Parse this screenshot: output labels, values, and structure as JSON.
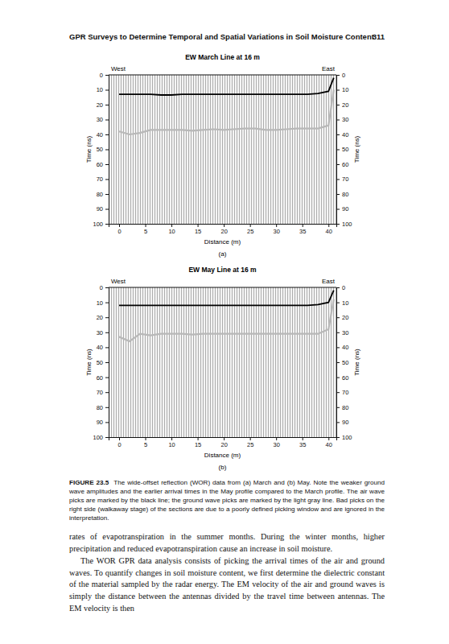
{
  "header": {
    "title": "GPR Surveys to Determine Temporal and Spatial Variations in Soil Moisture Content",
    "page": "311"
  },
  "chart_data": [
    {
      "type": "line",
      "title": "EW March Line at 16 m",
      "annotations": [
        "West",
        "East"
      ],
      "panel_label": "(a)",
      "xlabel": "Distance (m)",
      "ylabel": "Time (ns)",
      "x": [
        0,
        2,
        4,
        6,
        8,
        10,
        12,
        14,
        16,
        18,
        20,
        22,
        24,
        26,
        28,
        30,
        32,
        34,
        36,
        38,
        40,
        41
      ],
      "series": [
        {
          "color": "#000000",
          "line_style": "solid",
          "values": [
            13,
            13,
            13,
            13,
            13.5,
            13.5,
            13,
            13,
            13,
            13,
            13,
            13,
            13,
            13,
            13,
            13,
            13,
            13,
            13,
            12.5,
            11,
            2
          ]
        },
        {
          "color": "#b8b8b8",
          "line_style": "solid",
          "values": [
            38,
            40,
            39,
            37,
            37,
            37,
            37,
            37.5,
            37,
            36.5,
            37,
            36.5,
            36,
            36,
            37,
            37,
            36.5,
            36,
            36,
            36,
            34,
            10
          ]
        }
      ],
      "xlim": [
        -2,
        41.5
      ],
      "ylim": [
        0,
        100
      ],
      "xticks": [
        0,
        5,
        10,
        15,
        20,
        25,
        30,
        35,
        40
      ],
      "yticks": [
        0,
        10,
        20,
        30,
        40,
        50,
        60,
        70,
        80,
        90,
        100
      ],
      "grid": false
    },
    {
      "type": "line",
      "title": "EW May Line at 16 m",
      "annotations": [
        "West",
        "East"
      ],
      "panel_label": "(b)",
      "xlabel": "Distance (m)",
      "ylabel": "Time (ns)",
      "x": [
        0,
        2,
        4,
        6,
        8,
        10,
        12,
        14,
        16,
        18,
        20,
        22,
        24,
        26,
        28,
        30,
        32,
        34,
        36,
        38,
        40,
        41
      ],
      "series": [
        {
          "color": "#000000",
          "line_style": "solid",
          "values": [
            12,
            12,
            12,
            12,
            12,
            12,
            12,
            12,
            12,
            12,
            12,
            12,
            12,
            12,
            12,
            12,
            12,
            12,
            12,
            11.5,
            10,
            2
          ]
        },
        {
          "color": "#b8b8b8",
          "line_style": "solid",
          "values": [
            33,
            36,
            31,
            32,
            31,
            31,
            31,
            31.5,
            31,
            31,
            31,
            31,
            31,
            31,
            31,
            31,
            31,
            31,
            31,
            31,
            28,
            8
          ]
        }
      ],
      "xlim": [
        -2,
        41.5
      ],
      "ylim": [
        0,
        100
      ],
      "xticks": [
        0,
        5,
        10,
        15,
        20,
        25,
        30,
        35,
        40
      ],
      "yticks": [
        0,
        10,
        20,
        30,
        40,
        50,
        60,
        70,
        80,
        90,
        100
      ],
      "grid": false
    }
  ],
  "caption": {
    "label": "FIGURE 23.5",
    "text": "The wide-offset reflection (WOR) data from (a) March and (b) May. Note the weaker ground wave amplitudes and the earlier arrival times in the May profile compared to the March profile. The air wave picks are marked by the black line; the ground wave picks are marked by the light gray line. Bad picks on the right side (walkaway stage) of the sections are due to a poorly defined picking window and are ignored in the interpretation."
  },
  "body": [
    "rates of evapotranspiration in the summer months. During the winter months, higher precipitation and reduced evapotranspiration cause an increase in soil moisture.",
    "The WOR GPR data analysis consists of picking the arrival times of the air and ground waves. To quantify changes in soil moisture content, we first determine the dielectric constant of the material sampled by the radar energy. The EM velocity of the air and ground waves is simply the distance between the antennas divided by the travel time between antennas. The EM velocity is then"
  ]
}
